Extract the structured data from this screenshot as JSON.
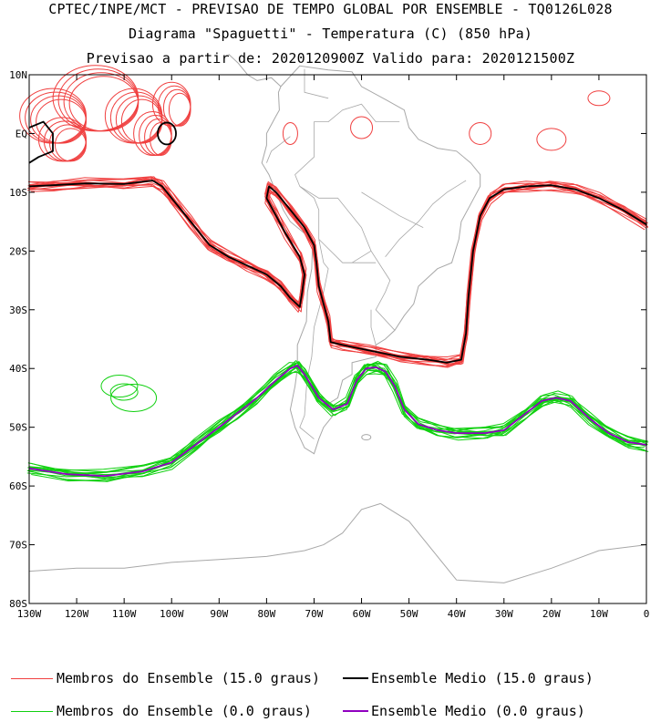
{
  "header": {
    "line1": "CPTEC/INPE/MCT - PREVISAO DE TEMPO GLOBAL POR ENSEMBLE - TQ0126L028",
    "line2": "Diagrama \"Spaguetti\" - Temperatura (C) (850 hPa)",
    "line3": "Previsao a partir de: 2020120900Z  Valido para: 2020121500Z"
  },
  "map": {
    "lat_labels": [
      "10N",
      "EQ",
      "10S",
      "20S",
      "30S",
      "40S",
      "50S",
      "60S",
      "70S",
      "80S"
    ],
    "lon_labels": [
      "130W",
      "120W",
      "110W",
      "100W",
      "90W",
      "80W",
      "70W",
      "60W",
      "50W",
      "40W",
      "30W",
      "20W",
      "10W",
      "0"
    ],
    "colors": {
      "coastline": "#a8a8a8",
      "members_15": "#f04040",
      "mean_15": "#000000",
      "members_0": "#10d010",
      "mean_0": "#9000c0"
    }
  },
  "legend": {
    "members_15": "Membros do Ensemble (15.0 graus)",
    "mean_15": "Ensemble Medio (15.0 graus)",
    "members_0": "Membros do Ensemble (0.0 graus)",
    "mean_0": "Ensemble Medio (0.0 graus)"
  }
}
